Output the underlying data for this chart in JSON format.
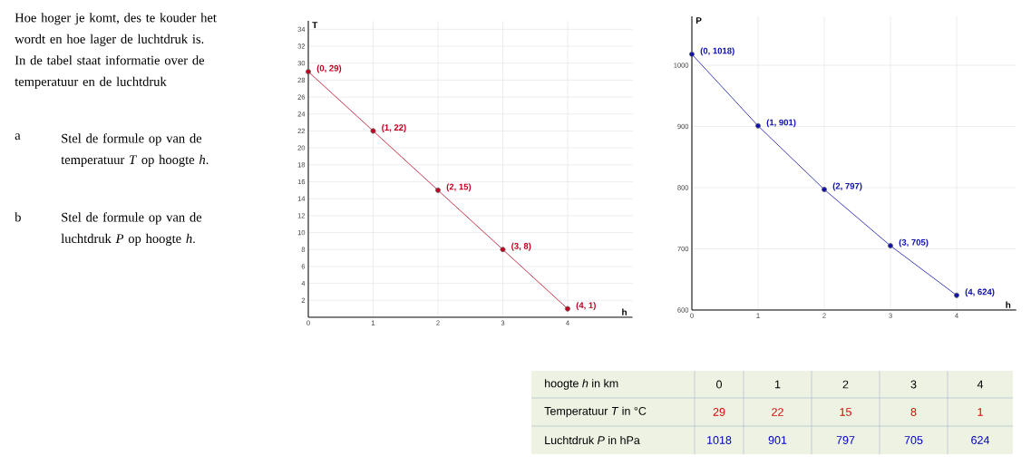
{
  "chart_data": [
    {
      "type": "other",
      "annotations": [
        "Hoe hoger je komt, des te kouder het wordt en hoe lager de luchtdruk is. In de tabel staat informatie over de temperatuur en de luchtdruk",
        "a",
        "Stel de formule op van de temperatuur *T* op hoogte *h*.",
        "b",
        "Stel de formule op van de luchtdruk *P* op hoogte *h*."
      ]
    },
    {
      "type": "line",
      "xlabel": "h",
      "ylabel": "T",
      "x": [
        0,
        1,
        2,
        3,
        4
      ],
      "series": [
        {
          "color": "#c00020",
          "values": [
            29,
            22,
            15,
            8,
            1
          ],
          "value_labels": [
            "(0, 29)",
            "(1, 22)",
            "(2, 15)",
            "(3, 8)",
            "(4, 1)"
          ]
        }
      ],
      "xlim": [
        0,
        5
      ],
      "ylim": [
        0,
        35
      ],
      "xticks": [
        0,
        1,
        2,
        3,
        4
      ],
      "yticks": [
        2,
        4,
        6,
        8,
        10,
        12,
        14,
        16,
        18,
        20,
        22,
        24,
        26,
        28,
        30,
        32,
        34
      ],
      "grid": true,
      "marker": "circle"
    },
    {
      "type": "line",
      "xlabel": "h",
      "ylabel": "P",
      "x": [
        0,
        1,
        2,
        3,
        4
      ],
      "series": [
        {
          "color": "#1010b0",
          "values": [
            1018,
            901,
            797,
            705,
            624
          ],
          "value_labels": [
            "(0, 1018)",
            "(1, 901)",
            "(2, 797)",
            "(3, 705)",
            "(4, 624)"
          ]
        }
      ],
      "xlim": [
        0,
        4.9
      ],
      "ylim": [
        600,
        1080
      ],
      "xticks": [
        0,
        1,
        2,
        3,
        4
      ],
      "yticks": [
        600,
        700,
        800,
        900,
        1000
      ],
      "grid": true,
      "marker": "circle"
    },
    {
      "type": "heatmap",
      "xlabel": "hoogte *h* in km",
      "categories": [
        "0",
        "1",
        "2",
        "3",
        "4"
      ],
      "y_categories": [
        "Temperatuur *T* in °C",
        "Luchtdruk *P* in hPa"
      ],
      "cells": [
        [
          29,
          22,
          15,
          8,
          1
        ],
        [
          1018,
          901,
          797,
          705,
          624
        ]
      ],
      "data_labels": true
    }
  ]
}
